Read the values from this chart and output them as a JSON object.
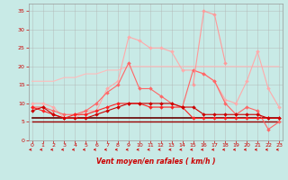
{
  "xlabel": "Vent moyen/en rafales ( km/h )",
  "background_color": "#c8eae6",
  "grid_color": "#b0b0b0",
  "x_ticks": [
    0,
    1,
    2,
    3,
    4,
    5,
    6,
    7,
    8,
    9,
    10,
    11,
    12,
    13,
    14,
    15,
    16,
    17,
    18,
    19,
    20,
    21,
    22,
    23
  ],
  "y_ticks": [
    0,
    5,
    10,
    15,
    20,
    25,
    30,
    35
  ],
  "ylim": [
    0,
    37
  ],
  "xlim": [
    -0.3,
    23.3
  ],
  "lines": [
    {
      "x": [
        0,
        1,
        2,
        3,
        4,
        5,
        6,
        7,
        8,
        9,
        10,
        11,
        12,
        13,
        14,
        15,
        16,
        17,
        18,
        19,
        20,
        21,
        22,
        23
      ],
      "y": [
        16,
        16,
        16,
        17,
        17,
        18,
        18,
        19,
        19,
        20,
        20,
        20,
        20,
        20,
        20,
        20,
        20,
        20,
        20,
        20,
        20,
        20,
        20,
        20
      ],
      "color": "#ffbbbb",
      "marker": null,
      "linewidth": 0.8,
      "markersize": 0
    },
    {
      "x": [
        0,
        1,
        2,
        3,
        4,
        5,
        6,
        7,
        8,
        9,
        10,
        11,
        12,
        13,
        14,
        15,
        16,
        17,
        18,
        19,
        20,
        21,
        22,
        23
      ],
      "y": [
        10,
        10,
        9,
        6,
        6,
        8,
        8,
        14,
        16,
        28,
        27,
        25,
        25,
        24,
        19,
        19,
        18,
        16,
        11,
        10,
        16,
        24,
        14,
        9
      ],
      "color": "#ffaaaa",
      "marker": "D",
      "linewidth": 0.8,
      "markersize": 2.0
    },
    {
      "x": [
        0,
        1,
        2,
        3,
        4,
        5,
        6,
        7,
        8,
        9,
        10,
        11,
        12,
        13,
        14,
        15,
        16,
        17,
        18,
        19,
        20,
        21,
        22,
        23
      ],
      "y": [
        9,
        9,
        8,
        7,
        7,
        8,
        10,
        13,
        15,
        21,
        14,
        14,
        12,
        10,
        9,
        19,
        18,
        16,
        10,
        7,
        9,
        8,
        3,
        5
      ],
      "color": "#ff6666",
      "marker": "D",
      "linewidth": 0.8,
      "markersize": 2.0
    },
    {
      "x": [
        15,
        16,
        17,
        18
      ],
      "y": [
        15,
        35,
        34,
        21
      ],
      "color": "#ff9999",
      "marker": "D",
      "linewidth": 0.8,
      "markersize": 2.0
    },
    {
      "x": [
        0,
        1,
        2,
        3,
        4,
        5,
        6,
        7,
        8,
        9,
        10,
        11,
        12,
        13,
        14,
        15,
        16,
        17,
        18,
        19,
        20,
        21,
        22,
        23
      ],
      "y": [
        9,
        8,
        7,
        6,
        7,
        7,
        8,
        9,
        10,
        10,
        10,
        9,
        9,
        9,
        9,
        6,
        6,
        6,
        6,
        6,
        6,
        6,
        6,
        6
      ],
      "color": "#ff2222",
      "marker": "D",
      "linewidth": 0.8,
      "markersize": 2.0
    },
    {
      "x": [
        0,
        1,
        2,
        3,
        4,
        5,
        6,
        7,
        8,
        9,
        10,
        11,
        12,
        13,
        14,
        15,
        16,
        17,
        18,
        19,
        20,
        21,
        22,
        23
      ],
      "y": [
        8,
        9,
        7,
        6,
        6,
        6,
        7,
        8,
        9,
        10,
        10,
        10,
        10,
        10,
        9,
        9,
        7,
        7,
        7,
        7,
        7,
        7,
        6,
        6
      ],
      "color": "#cc0000",
      "marker": "D",
      "linewidth": 0.8,
      "markersize": 2.0
    },
    {
      "x": [
        0,
        1,
        2,
        3,
        4,
        5,
        6,
        7,
        8,
        9,
        10,
        11,
        12,
        13,
        14,
        15,
        16,
        17,
        18,
        19,
        20,
        21,
        22,
        23
      ],
      "y": [
        5,
        5,
        5,
        5,
        5,
        5,
        5,
        5,
        5,
        5,
        5,
        5,
        5,
        5,
        5,
        5,
        5,
        5,
        5,
        5,
        5,
        5,
        5,
        5
      ],
      "color": "#990000",
      "marker": null,
      "linewidth": 1.0,
      "markersize": 0
    },
    {
      "x": [
        0,
        1,
        2,
        3,
        4,
        5,
        6,
        7,
        8,
        9,
        10,
        11,
        12,
        13,
        14,
        15,
        16,
        17,
        18,
        19,
        20,
        21,
        22,
        23
      ],
      "y": [
        6,
        6,
        6,
        6,
        6,
        6,
        6,
        6,
        6,
        6,
        6,
        6,
        6,
        6,
        6,
        6,
        6,
        6,
        6,
        6,
        6,
        6,
        6,
        6
      ],
      "color": "#660000",
      "marker": null,
      "linewidth": 1.2,
      "markersize": 0
    }
  ]
}
